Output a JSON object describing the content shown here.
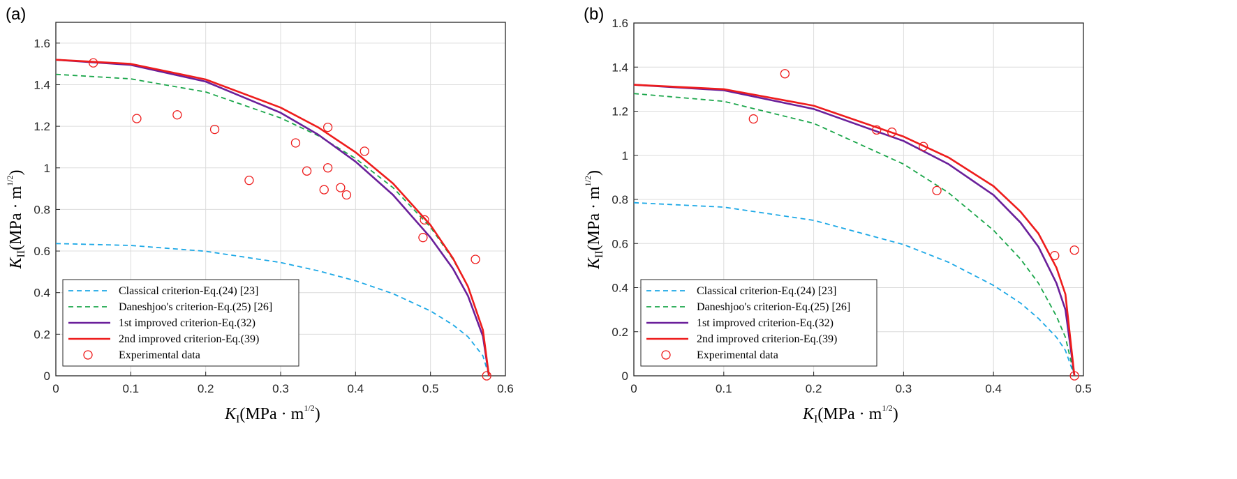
{
  "figure": {
    "panels": [
      "(a)",
      "(b)"
    ]
  },
  "colors": {
    "classical": "#1ca8e6",
    "daneshjoo": "#1aa64a",
    "improved1": "#6a1f9a",
    "improved2": "#ee1c1c",
    "experimental": "#ee1c1c",
    "grid": "#dcdcdc",
    "axis": "#262626"
  },
  "chart_data": [
    {
      "type": "line",
      "panel_label": "(a)",
      "xlabel": "K_I(MPa·m^1/2)",
      "ylabel": "K_II(MPa·m^1/2)",
      "xlim": [
        0,
        0.6
      ],
      "ylim": [
        0,
        1.7
      ],
      "xticks": [
        "0",
        "0.1",
        "0.2",
        "0.3",
        "0.4",
        "0.5",
        "0.6"
      ],
      "yticks": [
        "0",
        "0.2",
        "0.4",
        "0.6",
        "0.8",
        "1",
        "1.2",
        "1.4",
        "1.6"
      ],
      "grid": true,
      "legend_position": "bottom-left",
      "series": [
        {
          "name": "Classical criterion-Eq.(24) [23]",
          "style": "dashed",
          "x": [
            0,
            0.1,
            0.2,
            0.3,
            0.35,
            0.4,
            0.45,
            0.5,
            0.53,
            0.55,
            0.57,
            0.578
          ],
          "y": [
            0.636,
            0.627,
            0.599,
            0.545,
            0.505,
            0.457,
            0.395,
            0.312,
            0.245,
            0.188,
            0.096,
            0
          ]
        },
        {
          "name": "Daneshjoo's criterion-Eq.(25) [26]",
          "style": "dashed",
          "x": [
            0,
            0.1,
            0.2,
            0.3,
            0.35,
            0.4,
            0.45,
            0.5,
            0.53,
            0.55,
            0.57,
            0.578
          ],
          "y": [
            1.45,
            1.428,
            1.365,
            1.24,
            1.155,
            1.045,
            0.905,
            0.715,
            0.56,
            0.43,
            0.22,
            0
          ]
        },
        {
          "name": "1st improved criterion-Eq.(32)",
          "style": "solid",
          "x": [
            0,
            0.1,
            0.2,
            0.3,
            0.35,
            0.4,
            0.45,
            0.5,
            0.53,
            0.55,
            0.57,
            0.578
          ],
          "y": [
            1.52,
            1.495,
            1.415,
            1.265,
            1.16,
            1.03,
            0.87,
            0.665,
            0.515,
            0.385,
            0.19,
            0
          ]
        },
        {
          "name": "2nd improved criterion-Eq.(39)",
          "style": "solid",
          "x": [
            0,
            0.1,
            0.2,
            0.3,
            0.35,
            0.4,
            0.45,
            0.5,
            0.53,
            0.55,
            0.57,
            0.578
          ],
          "y": [
            1.52,
            1.5,
            1.425,
            1.29,
            1.195,
            1.075,
            0.925,
            0.725,
            0.565,
            0.43,
            0.22,
            0
          ]
        },
        {
          "name": "Experimental data",
          "style": "markers",
          "x": [
            0.05,
            0.108,
            0.162,
            0.212,
            0.258,
            0.32,
            0.335,
            0.358,
            0.363,
            0.363,
            0.38,
            0.388,
            0.412,
            0.49,
            0.492,
            0.56,
            0.575
          ],
          "y": [
            1.505,
            1.237,
            1.255,
            1.185,
            0.94,
            1.12,
            0.985,
            0.895,
            1.195,
            1.0,
            0.905,
            0.87,
            1.08,
            0.665,
            0.75,
            0.56,
            0.0
          ]
        }
      ]
    },
    {
      "type": "line",
      "panel_label": "(b)",
      "xlabel": "K_I(MPa·m^1/2)",
      "ylabel": "K_II(MPa·m^1/2)",
      "xlim": [
        0,
        0.5
      ],
      "ylim": [
        0,
        1.6
      ],
      "xticks": [
        "0",
        "0.1",
        "0.2",
        "0.3",
        "0.4",
        "0.5"
      ],
      "yticks": [
        "0",
        "0.2",
        "0.4",
        "0.6",
        "0.8",
        "1",
        "1.2",
        "1.4",
        "1.6"
      ],
      "grid": true,
      "legend_position": "bottom-left",
      "series": [
        {
          "name": "Classical criterion-Eq.(24) [23]",
          "style": "dashed",
          "x": [
            0,
            0.1,
            0.2,
            0.3,
            0.35,
            0.4,
            0.43,
            0.45,
            0.47,
            0.48,
            0.49
          ],
          "y": [
            0.785,
            0.765,
            0.705,
            0.595,
            0.515,
            0.41,
            0.33,
            0.26,
            0.175,
            0.115,
            0
          ]
        },
        {
          "name": "Daneshjoo's criterion-Eq.(25) [26]",
          "style": "dashed",
          "x": [
            0,
            0.1,
            0.2,
            0.3,
            0.35,
            0.4,
            0.43,
            0.45,
            0.47,
            0.48,
            0.49
          ],
          "y": [
            1.28,
            1.245,
            1.145,
            0.96,
            0.83,
            0.66,
            0.53,
            0.42,
            0.27,
            0.175,
            0
          ]
        },
        {
          "name": "1st improved criterion-Eq.(32)",
          "style": "solid",
          "x": [
            0,
            0.1,
            0.2,
            0.3,
            0.35,
            0.4,
            0.43,
            0.45,
            0.47,
            0.48,
            0.49
          ],
          "y": [
            1.32,
            1.295,
            1.21,
            1.065,
            0.96,
            0.82,
            0.695,
            0.585,
            0.42,
            0.3,
            0
          ]
        },
        {
          "name": "2nd improved criterion-Eq.(39)",
          "style": "solid",
          "x": [
            0,
            0.1,
            0.2,
            0.3,
            0.35,
            0.4,
            0.43,
            0.45,
            0.47,
            0.48,
            0.49
          ],
          "y": [
            1.32,
            1.3,
            1.225,
            1.085,
            0.99,
            0.86,
            0.745,
            0.645,
            0.49,
            0.37,
            0
          ]
        },
        {
          "name": "Experimental data",
          "style": "markers",
          "x": [
            0.133,
            0.168,
            0.27,
            0.287,
            0.322,
            0.337,
            0.468,
            0.49,
            0.49
          ],
          "y": [
            1.165,
            1.37,
            1.115,
            1.105,
            1.04,
            0.84,
            0.545,
            0.57,
            0.0
          ]
        }
      ]
    }
  ]
}
